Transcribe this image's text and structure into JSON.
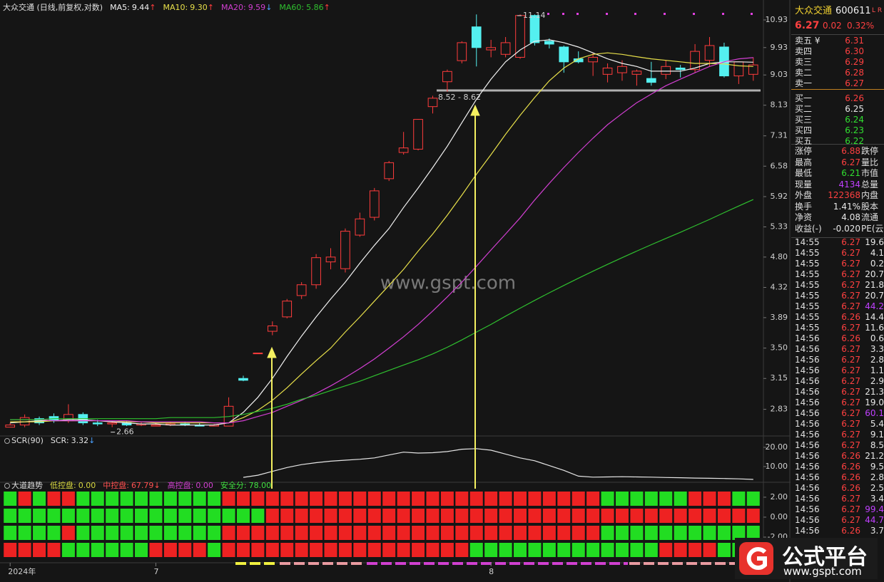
{
  "chart_data": [
    {
      "type": "candlestick",
      "title": "大众交通 (日线,前复权,对数)",
      "log_scale": true,
      "categories": [
        "2024年",
        null,
        null,
        null,
        null,
        null,
        null,
        null,
        null,
        null,
        "7",
        null,
        null,
        null,
        null,
        null,
        null,
        null,
        null,
        null,
        null,
        null,
        null,
        null,
        null,
        null,
        null,
        null,
        null,
        null,
        null,
        null,
        null,
        "8",
        null,
        null,
        null,
        null,
        null,
        null,
        null,
        null,
        null,
        null,
        null,
        null,
        null,
        null,
        null,
        null,
        null,
        null
      ],
      "open": [
        2.66,
        2.68,
        2.74,
        2.76,
        2.72,
        2.78,
        2.7,
        2.69,
        2.7,
        2.68,
        2.67,
        2.68,
        2.69,
        2.68,
        2.67,
        2.67,
        3.15,
        3.44,
        3.71,
        3.9,
        4.2,
        4.36,
        4.72,
        4.61,
        5.18,
        5.51,
        6.3,
        6.9,
        6.98,
        8.09,
        8.82,
        9.49,
        10.67,
        9.85,
        9.7,
        9.6,
        11.1,
        10.15,
        9.95,
        9.55,
        9.45,
        9.05,
        9.1,
        9.05,
        8.92,
        9.05,
        9.25,
        9.2,
        9.5,
        9.95,
        9.0,
        9.05
      ],
      "high": [
        2.7,
        2.78,
        2.76,
        2.79,
        2.88,
        2.8,
        2.73,
        2.72,
        2.72,
        2.71,
        2.7,
        2.71,
        2.71,
        2.7,
        2.69,
        2.95,
        3.18,
        3.44,
        3.84,
        4.15,
        4.4,
        4.85,
        4.95,
        5.3,
        5.6,
        6.1,
        6.7,
        7.41,
        7.75,
        8.4,
        9.2,
        10.15,
        11.14,
        10.2,
        10.3,
        11.14,
        11.14,
        10.25,
        10.0,
        9.8,
        9.75,
        9.4,
        9.5,
        9.2,
        9.45,
        9.5,
        9.35,
        10.05,
        10.3,
        10.1,
        9.4,
        9.6
      ],
      "low": [
        2.66,
        2.66,
        2.68,
        2.7,
        2.7,
        2.68,
        2.67,
        2.66,
        2.67,
        2.67,
        2.67,
        2.67,
        2.67,
        2.67,
        2.67,
        2.67,
        3.12,
        3.44,
        3.66,
        3.88,
        4.15,
        4.3,
        4.6,
        4.55,
        5.15,
        5.45,
        6.25,
        6.85,
        6.95,
        7.9,
        8.52,
        9.4,
        9.3,
        9.6,
        9.6,
        9.55,
        10.0,
        9.9,
        9.1,
        9.4,
        9.0,
        8.8,
        8.85,
        8.7,
        8.7,
        8.9,
        8.95,
        9.1,
        9.3,
        8.95,
        8.75,
        8.85
      ],
      "close": [
        2.68,
        2.75,
        2.7,
        2.72,
        2.78,
        2.7,
        2.69,
        2.7,
        2.68,
        2.69,
        2.68,
        2.69,
        2.68,
        2.67,
        2.68,
        2.86,
        3.13,
        3.44,
        3.78,
        4.12,
        4.36,
        4.79,
        4.8,
        5.25,
        5.48,
        6.04,
        6.66,
        7.01,
        7.74,
        8.33,
        9.14,
        10.1,
        9.93,
        9.93,
        10.1,
        11.1,
        10.1,
        10.05,
        9.45,
        9.45,
        9.6,
        9.25,
        9.3,
        9.15,
        8.8,
        9.3,
        9.2,
        9.8,
        10.0,
        9.0,
        9.45,
        9.35
      ],
      "up_color": "#ff3c3c",
      "down_color": "#54f0f0",
      "series": [
        {
          "name": "MA5:",
          "legend_value": "9.44",
          "arrow": "↑",
          "arrow_color": "#ff3c3c",
          "color": "#f2f2f2",
          "values": [
            2.7,
            2.71,
            2.72,
            2.72,
            2.73,
            2.73,
            2.72,
            2.71,
            2.7,
            2.69,
            2.69,
            2.68,
            2.68,
            2.68,
            2.68,
            2.7,
            2.8,
            2.95,
            3.15,
            3.4,
            3.65,
            3.9,
            4.15,
            4.4,
            4.7,
            5.0,
            5.3,
            5.7,
            6.1,
            6.55,
            7.05,
            7.65,
            8.3,
            8.9,
            9.45,
            9.85,
            10.15,
            10.2,
            10.1,
            9.95,
            9.75,
            9.55,
            9.4,
            9.3,
            9.15,
            9.15,
            9.15,
            9.25,
            9.4,
            9.45,
            9.45,
            9.44
          ]
        },
        {
          "name": "MA10:",
          "legend_value": "9.30",
          "arrow": "↑",
          "arrow_color": "#ff3c3c",
          "color": "#e8e04a",
          "values": [
            2.71,
            2.71,
            2.71,
            2.72,
            2.72,
            2.72,
            2.72,
            2.72,
            2.71,
            2.71,
            2.7,
            2.7,
            2.7,
            2.7,
            2.7,
            2.7,
            2.75,
            2.82,
            2.92,
            3.05,
            3.2,
            3.35,
            3.5,
            3.7,
            3.9,
            4.12,
            4.35,
            4.6,
            4.9,
            5.2,
            5.55,
            5.95,
            6.4,
            6.85,
            7.35,
            7.85,
            8.35,
            8.85,
            9.25,
            9.55,
            9.7,
            9.75,
            9.7,
            9.62,
            9.55,
            9.5,
            9.45,
            9.4,
            9.4,
            9.38,
            9.32,
            9.3
          ]
        },
        {
          "name": "MA20:",
          "legend_value": "9.59",
          "arrow": "↓",
          "arrow_color": "#4aa0ff",
          "color": "#d23fd2",
          "values": [
            2.73,
            2.73,
            2.73,
            2.72,
            2.72,
            2.72,
            2.72,
            2.72,
            2.72,
            2.71,
            2.71,
            2.71,
            2.71,
            2.71,
            2.7,
            2.7,
            2.72,
            2.76,
            2.8,
            2.86,
            2.92,
            2.99,
            3.07,
            3.16,
            3.26,
            3.37,
            3.5,
            3.64,
            3.8,
            3.98,
            4.18,
            4.4,
            4.65,
            4.92,
            5.2,
            5.5,
            5.85,
            6.2,
            6.55,
            6.9,
            7.25,
            7.6,
            7.9,
            8.2,
            8.45,
            8.7,
            8.9,
            9.1,
            9.3,
            9.45,
            9.55,
            9.59
          ]
        },
        {
          "name": "MA60:",
          "legend_value": "5.86",
          "arrow": "↑",
          "arrow_color": "#ff3c3c",
          "color": "#2fc02f",
          "values": [
            2.73,
            2.73,
            2.73,
            2.74,
            2.74,
            2.74,
            2.74,
            2.74,
            2.74,
            2.74,
            2.74,
            2.75,
            2.75,
            2.75,
            2.75,
            2.76,
            2.78,
            2.81,
            2.84,
            2.88,
            2.93,
            2.97,
            3.02,
            3.07,
            3.12,
            3.18,
            3.24,
            3.3,
            3.36,
            3.43,
            3.51,
            3.6,
            3.7,
            3.8,
            3.91,
            4.02,
            4.13,
            4.24,
            4.35,
            4.46,
            4.57,
            4.68,
            4.79,
            4.9,
            5.01,
            5.12,
            5.23,
            5.35,
            5.47,
            5.6,
            5.73,
            5.86
          ]
        }
      ],
      "annotations": [
        "2.66",
        "8.52 - 8.62",
        "11.14"
      ],
      "watermark": "www.gspt.com",
      "ylim": [
        2.58,
        11.37
      ],
      "yticks": [
        10.93,
        9.93,
        9.03,
        8.13,
        7.31,
        6.58,
        5.92,
        5.33,
        {
          "value": 4.8,
          "label": "4.80"
        },
        4.32,
        3.89,
        {
          "value": 3.5,
          "label": "3.50"
        },
        3.15,
        2.83
      ]
    },
    {
      "type": "line",
      "title": "SCR(90)",
      "series": [
        {
          "name": "SCR:",
          "legend_value": "3.32",
          "arrow": "↓",
          "arrow_color": "#4aa0ff",
          "color": "#e6e6e6",
          "values": [
            null,
            null,
            null,
            null,
            null,
            null,
            null,
            null,
            null,
            null,
            null,
            null,
            null,
            null,
            null,
            null,
            4.4,
            5.5,
            7.5,
            9.5,
            11.0,
            12.0,
            12.8,
            13.3,
            13.8,
            14.5,
            16.0,
            17.5,
            17.0,
            17.2,
            17.8,
            19.0,
            19.3,
            18.5,
            16.5,
            14.5,
            13.0,
            10.5,
            8.0,
            5.0,
            4.5,
            4.6,
            4.7,
            4.6,
            4.5,
            4.3,
            4.2,
            4.0,
            3.9,
            3.8,
            3.6,
            3.32
          ]
        }
      ],
      "ylim": [
        2.2,
        25.9
      ],
      "yticks": [
        {
          "value": 20,
          "label": "20.00"
        },
        {
          "value": 10,
          "label": "10.00"
        }
      ]
    },
    {
      "type": "grid",
      "title": "大道趋势",
      "on_color": "#ee2222",
      "off_color": "#22dd22",
      "legend": [
        {
          "name": "低控盘:",
          "legend_value": "0.00",
          "color": "#d8d840"
        },
        {
          "name": "中控盘:",
          "legend_value": "67.79",
          "arrow": "↓",
          "color": "#ff5050"
        },
        {
          "name": "高控盘:",
          "legend_value": "0.00",
          "color": "#d040d0"
        },
        {
          "name": "安全分:",
          "legend_value": "78.00",
          "color": "#40e040"
        }
      ],
      "rows": [
        [
          0,
          1,
          0,
          1,
          1,
          0,
          0,
          0,
          0,
          0,
          0,
          0,
          0,
          0,
          0,
          1,
          1,
          1,
          1,
          1,
          1,
          1,
          1,
          1,
          1,
          1,
          1,
          1,
          1,
          1,
          1,
          1,
          1,
          1,
          1,
          1,
          1,
          1,
          1,
          1,
          1,
          0,
          0,
          0,
          0,
          0,
          0,
          1,
          1,
          1,
          0,
          0
        ],
        [
          0,
          0,
          0,
          0,
          0,
          0,
          0,
          0,
          0,
          0,
          0,
          0,
          0,
          0,
          0,
          0,
          0,
          0,
          1,
          1,
          1,
          1,
          1,
          1,
          1,
          1,
          1,
          1,
          1,
          1,
          1,
          1,
          1,
          1,
          1,
          1,
          1,
          1,
          1,
          1,
          1,
          1,
          1,
          1,
          1,
          1,
          1,
          1,
          1,
          1,
          1,
          1
        ],
        [
          0,
          0,
          0,
          0,
          1,
          0,
          0,
          0,
          0,
          0,
          0,
          0,
          0,
          0,
          0,
          1,
          1,
          1,
          1,
          1,
          1,
          1,
          1,
          1,
          1,
          1,
          1,
          1,
          1,
          1,
          1,
          1,
          1,
          1,
          1,
          1,
          1,
          1,
          1,
          1,
          1,
          0,
          0,
          0,
          0,
          0,
          0,
          0,
          0,
          0,
          0,
          0
        ],
        [
          1,
          1,
          1,
          1,
          0,
          0,
          0,
          0,
          0,
          0,
          1,
          1,
          1,
          1,
          0,
          1,
          1,
          1,
          1,
          1,
          1,
          1,
          1,
          1,
          1,
          1,
          1,
          1,
          1,
          1,
          1,
          1,
          0,
          0,
          0,
          0,
          0,
          0,
          0,
          0,
          0,
          0,
          0,
          0,
          0,
          1,
          1,
          1,
          1,
          0,
          0,
          0
        ]
      ],
      "ylim": [
        -4.57,
        2.71
      ],
      "yticks": [
        {
          "value": 2,
          "label": "2.00"
        },
        {
          "value": 0,
          "label": "0.00"
        },
        {
          "value": -2,
          "label": "-2.00"
        }
      ]
    }
  ],
  "quote": {
    "name": "大众交通",
    "code": "600611",
    "flag": "L R",
    "price": "6.27",
    "change": "0.02",
    "pct": "0.32%",
    "book": [
      {
        "label": "卖五 ¥",
        "price": "6.31",
        "color": "#ff4040"
      },
      {
        "label": "卖四",
        "price": "6.30",
        "color": "#ff4040"
      },
      {
        "label": "卖三",
        "price": "6.29",
        "color": "#ff4040"
      },
      {
        "label": "卖二",
        "price": "6.28",
        "color": "#ff4040"
      },
      {
        "label": "卖一",
        "price": "6.27",
        "color": "#ff4040"
      },
      {
        "label": "买一",
        "price": "6.26",
        "color": "#ff4040"
      },
      {
        "label": "买二",
        "price": "6.25",
        "color": "#e8e8e8"
      },
      {
        "label": "买三",
        "price": "6.24",
        "color": "#30e030"
      },
      {
        "label": "买四",
        "price": "6.23",
        "color": "#30e030"
      },
      {
        "label": "买五",
        "price": "6.22",
        "color": "#30e030"
      }
    ],
    "stats": [
      {
        "label": "涨停",
        "value": "6.88",
        "color": "#ff4040",
        "label2": "跌停"
      },
      {
        "label": "最高",
        "value": "6.27",
        "color": "#ff4040",
        "label2": "量比"
      },
      {
        "label": "最低",
        "value": "6.21",
        "color": "#30e030",
        "label2": "市值"
      },
      {
        "label": "现量",
        "value": "4134",
        "color": "#c040ff",
        "label2": "总量"
      },
      {
        "label": "外盘",
        "value": "122368",
        "color": "#ff4040",
        "label2": "内盘"
      },
      {
        "label": "换手",
        "value": "1.41%",
        "color": "#e8e8e8",
        "label2": "股本"
      },
      {
        "label": "净资",
        "value": "4.08",
        "color": "#e8e8e8",
        "label2": "流通"
      },
      {
        "label": "收益(-)",
        "value": "-0.020",
        "color": "#e8e8e8",
        "label2": "PE(云"
      }
    ],
    "ticks": [
      {
        "time": "14:55",
        "price": "6.27",
        "vol": "19.6"
      },
      {
        "time": "14:55",
        "price": "6.27",
        "vol": "4.1"
      },
      {
        "time": "14:55",
        "price": "6.27",
        "vol": "0.2"
      },
      {
        "time": "14:55",
        "price": "6.27",
        "vol": "20.7"
      },
      {
        "time": "14:55",
        "price": "6.27",
        "vol": "21.8"
      },
      {
        "time": "14:55",
        "price": "6.27",
        "vol": "20.7"
      },
      {
        "time": "14:55",
        "price": "6.27",
        "vol": "44.2",
        "vol_color": "#c040ff"
      },
      {
        "time": "14:55",
        "price": "6.26",
        "vol": "14.4"
      },
      {
        "time": "14:55",
        "price": "6.27",
        "vol": "11.6"
      },
      {
        "time": "14:56",
        "price": "6.26",
        "vol": "0.6"
      },
      {
        "time": "14:56",
        "price": "6.27",
        "vol": "3.3"
      },
      {
        "time": "14:56",
        "price": "6.27",
        "vol": "2.8"
      },
      {
        "time": "14:56",
        "price": "6.27",
        "vol": "1.1"
      },
      {
        "time": "14:56",
        "price": "6.27",
        "vol": "2.9"
      },
      {
        "time": "14:56",
        "price": "6.27",
        "vol": "21.3"
      },
      {
        "time": "14:56",
        "price": "6.27",
        "vol": "19.0"
      },
      {
        "time": "14:56",
        "price": "6.27",
        "vol": "60.1",
        "vol_color": "#c040ff"
      },
      {
        "time": "14:56",
        "price": "6.27",
        "vol": "5.4"
      },
      {
        "time": "14:56",
        "price": "6.27",
        "vol": "9.1"
      },
      {
        "time": "14:56",
        "price": "6.27",
        "vol": "8.5"
      },
      {
        "time": "14:56",
        "price": "6.26",
        "vol": "21.2"
      },
      {
        "time": "14:56",
        "price": "6.26",
        "vol": "9.5"
      },
      {
        "time": "14:56",
        "price": "6.26",
        "vol": "2.8"
      },
      {
        "time": "14:56",
        "price": "6.26",
        "vol": "2.5"
      },
      {
        "time": "14:56",
        "price": "6.27",
        "vol": "3.4"
      },
      {
        "time": "14:56",
        "price": "6.27",
        "vol": "99.4",
        "vol_color": "#c040ff"
      },
      {
        "time": "14:56",
        "price": "6.27",
        "vol": "44.7",
        "vol_color": "#c040ff"
      },
      {
        "time": "14:56",
        "price": "6.26",
        "vol": "3.7"
      }
    ]
  },
  "logo": {
    "title": "公式平台",
    "url": "www.gspt.com"
  }
}
